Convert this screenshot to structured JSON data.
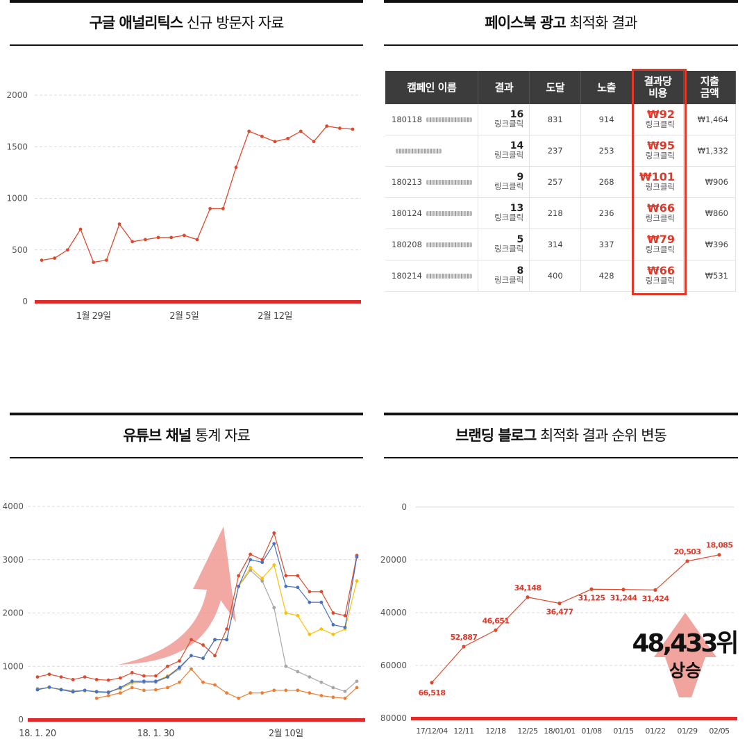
{
  "panels": {
    "ga": {
      "title_bold": "구글 애널리틱스",
      "title_rest": " 신규 방문자 자료"
    },
    "fb": {
      "title_bold": "페이스북 광고",
      "title_rest": " 최적화 결과"
    },
    "yt": {
      "title_bold": "유튜브 채널",
      "title_rest": " 통계 자료"
    },
    "blog": {
      "title_bold": "브랜딩 블로그",
      "title_rest": " 최적화 결과 순위 변동"
    }
  },
  "fb_table": {
    "headers": [
      "캠페인 이름",
      "결과",
      "도달",
      "노출",
      "결과당\n비용",
      "지출\n금액"
    ],
    "rows": [
      {
        "id": "180118",
        "result": "16",
        "result_sub": "링크클릭",
        "reach": "831",
        "impr": "914",
        "cpr": "₩92",
        "cpr_sub": "링크클릭",
        "spent": "₩1,464"
      },
      {
        "id": "",
        "result": "14",
        "result_sub": "링크클릭",
        "reach": "237",
        "impr": "253",
        "cpr": "₩95",
        "cpr_sub": "링크클릭",
        "spent": "₩1,332"
      },
      {
        "id": "180213",
        "result": "9",
        "result_sub": "링크클릭",
        "reach": "257",
        "impr": "268",
        "cpr": "₩101",
        "cpr_sub": "링크클릭",
        "spent": "₩906"
      },
      {
        "id": "180124",
        "result": "13",
        "result_sub": "링크클릭",
        "reach": "218",
        "impr": "236",
        "cpr": "₩66",
        "cpr_sub": "링크클릭",
        "spent": "₩860"
      },
      {
        "id": "180208",
        "result": "5",
        "result_sub": "링크클릭",
        "reach": "314",
        "impr": "337",
        "cpr": "₩79",
        "cpr_sub": "링크클릭",
        "spent": "₩396"
      },
      {
        "id": "180214",
        "result": "8",
        "result_sub": "링크클릭",
        "reach": "400",
        "impr": "428",
        "cpr": "₩66",
        "cpr_sub": "링크클릭",
        "spent": "₩531"
      }
    ]
  },
  "chart_data": [
    {
      "id": "ga",
      "type": "line",
      "ylim": [
        0,
        2000
      ],
      "yticks": [
        0,
        500,
        1000,
        1500,
        2000
      ],
      "xtick_labels": [
        {
          "index": 4,
          "label": "1월 29일"
        },
        {
          "index": 11,
          "label": "2월 5일"
        },
        {
          "index": 18,
          "label": "2월 12일"
        }
      ],
      "series": [
        {
          "values": [
            400,
            420,
            500,
            700,
            380,
            400,
            750,
            580,
            600,
            620,
            620,
            640,
            600,
            900,
            900,
            1300,
            1650,
            1600,
            1550,
            1580,
            1650,
            1550,
            1700,
            1680,
            1670
          ],
          "color": "#e0482b"
        }
      ]
    },
    {
      "id": "yt",
      "type": "line",
      "ylim": [
        0,
        4000
      ],
      "yticks": [
        0,
        1000,
        2000,
        3000,
        4000
      ],
      "xtick_labels": [
        {
          "index": 0,
          "label": "18. 1. 20"
        },
        {
          "index": 10,
          "label": "18. 1. 30"
        },
        {
          "index": 21,
          "label": "2월 10일"
        }
      ],
      "series": [
        {
          "color": "#e0482b",
          "values": [
            800,
            850,
            800,
            750,
            800,
            750,
            740,
            780,
            880,
            820,
            820,
            1000,
            1100,
            1500,
            1400,
            1200,
            1700,
            2700,
            3100,
            3000,
            3500,
            2700,
            2700,
            2400,
            2400,
            2000,
            1950,
            3080
          ]
        },
        {
          "color": "#a6a6a6",
          "values": [
            580,
            600,
            570,
            540,
            540,
            530,
            520,
            580,
            690,
            700,
            700,
            800,
            950,
            1200,
            1150,
            1500,
            1500,
            2500,
            2800,
            2600,
            2100,
            1000,
            900,
            800,
            700,
            600,
            530,
            720
          ]
        },
        {
          "color": "#ffc000",
          "values": [
            560,
            600,
            560,
            520,
            540,
            520,
            510,
            590,
            700,
            720,
            720,
            820,
            980,
            1200,
            1150,
            1500,
            1500,
            2500,
            2850,
            2650,
            2900,
            2000,
            1950,
            1600,
            1700,
            1600,
            1700,
            2600
          ]
        },
        {
          "color": "#4472c4",
          "values": [
            560,
            610,
            560,
            520,
            550,
            520,
            510,
            600,
            720,
            720,
            720,
            800,
            980,
            1200,
            1150,
            1500,
            1500,
            2500,
            3000,
            2950,
            3300,
            2500,
            2480,
            2200,
            2200,
            1780,
            1730,
            3050
          ]
        },
        {
          "color": "#ed7d31",
          "values": [
            null,
            null,
            null,
            null,
            null,
            400,
            450,
            500,
            600,
            550,
            560,
            600,
            700,
            950,
            700,
            650,
            500,
            400,
            500,
            500,
            550,
            550,
            550,
            500,
            450,
            420,
            400,
            600
          ]
        }
      ],
      "annotation": "rising-arrow"
    },
    {
      "id": "blog",
      "type": "line",
      "ylim": [
        80000,
        0
      ],
      "yticks": [
        0,
        20000,
        40000,
        60000,
        80000
      ],
      "categories": [
        "17/12/04",
        "12/11",
        "12/18",
        "12/25",
        "18/01/01",
        "01/08",
        "01/15",
        "01/22",
        "01/29",
        "02/05"
      ],
      "values": [
        66518,
        52887,
        46651,
        34148,
        36477,
        31125,
        31244,
        31424,
        20503,
        18085
      ],
      "labels": [
        "66,518",
        "52,887",
        "46,651",
        "34,148",
        "36,477",
        "31,125",
        "31,244",
        "31,424",
        "20,503",
        "18,085"
      ],
      "highlight": {
        "value": "48,433위",
        "sub": "상승"
      }
    }
  ]
}
